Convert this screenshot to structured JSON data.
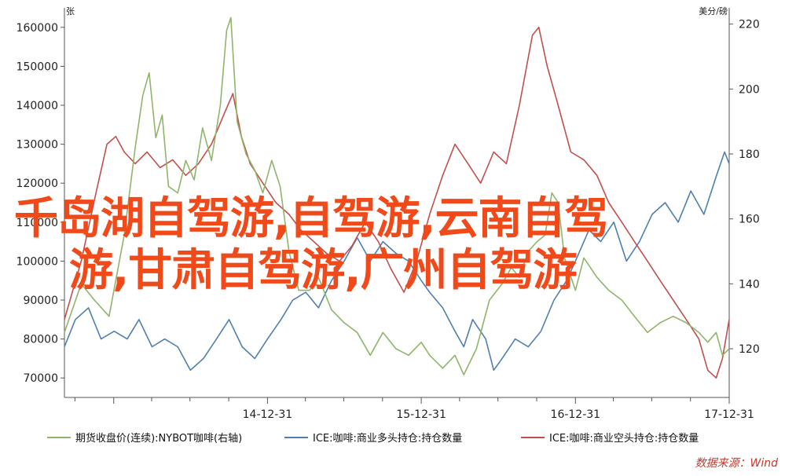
{
  "overlay": {
    "line1": "千岛湖自驾游,自驾游,云南自驾",
    "line2": "游,甘肃自驾游,广州自驾游"
  },
  "source": "数据来源：Wind",
  "chart_data": {
    "type": "line",
    "left_unit": "张",
    "right_unit": "美分/磅",
    "left_axis": {
      "ylim": [
        65000,
        165000
      ],
      "ticks": [
        70000,
        80000,
        90000,
        100000,
        110000,
        120000,
        130000,
        140000,
        150000,
        160000
      ]
    },
    "right_axis": {
      "ylim": [
        105,
        225
      ],
      "ticks": [
        120,
        140,
        160,
        180,
        200,
        220
      ]
    },
    "x_axis": {
      "range": [
        "2013-09-05",
        "2017-12-31"
      ],
      "tick_labels": [
        "14-12-31",
        "15-12-31",
        "16-12-31",
        "17-12-31"
      ]
    },
    "grid": false,
    "legend": "bottom",
    "series": [
      {
        "name": "期货收盘价(连续):NYBOT咖啡(右轴)",
        "axis": "right",
        "color": "#8fb56a",
        "points": [
          [
            "2013-09-05",
            125
          ],
          [
            "2013-10-15",
            140
          ],
          [
            "2013-11-15",
            135
          ],
          [
            "2013-12-20",
            130
          ],
          [
            "2014-01-25",
            155
          ],
          [
            "2014-02-20",
            182
          ],
          [
            "2014-03-10",
            198
          ],
          [
            "2014-03-25",
            205
          ],
          [
            "2014-04-10",
            185
          ],
          [
            "2014-04-25",
            192
          ],
          [
            "2014-05-10",
            170
          ],
          [
            "2014-06-01",
            168
          ],
          [
            "2014-06-20",
            178
          ],
          [
            "2014-07-10",
            172
          ],
          [
            "2014-07-30",
            188
          ],
          [
            "2014-08-20",
            178
          ],
          [
            "2014-09-10",
            195
          ],
          [
            "2014-09-25",
            218
          ],
          [
            "2014-10-05",
            222
          ],
          [
            "2014-10-20",
            190
          ],
          [
            "2014-11-10",
            180
          ],
          [
            "2014-12-01",
            175
          ],
          [
            "2014-12-20",
            168
          ],
          [
            "2015-01-10",
            178
          ],
          [
            "2015-01-30",
            170
          ],
          [
            "2015-02-20",
            150
          ],
          [
            "2015-03-15",
            138
          ],
          [
            "2015-04-10",
            138
          ],
          [
            "2015-05-01",
            142
          ],
          [
            "2015-06-01",
            132
          ],
          [
            "2015-07-01",
            128
          ],
          [
            "2015-08-01",
            125
          ],
          [
            "2015-09-01",
            118
          ],
          [
            "2015-10-01",
            125
          ],
          [
            "2015-11-01",
            120
          ],
          [
            "2015-12-01",
            118
          ],
          [
            "2015-12-31",
            122
          ],
          [
            "2016-01-20",
            118
          ],
          [
            "2016-02-20",
            114
          ],
          [
            "2016-03-20",
            118
          ],
          [
            "2016-04-10",
            112
          ],
          [
            "2016-05-10",
            120
          ],
          [
            "2016-06-10",
            135
          ],
          [
            "2016-07-10",
            140
          ],
          [
            "2016-08-01",
            145
          ],
          [
            "2016-08-20",
            142
          ],
          [
            "2016-09-10",
            150
          ],
          [
            "2016-10-01",
            153
          ],
          [
            "2016-10-20",
            155
          ],
          [
            "2016-11-05",
            168
          ],
          [
            "2016-11-20",
            165
          ],
          [
            "2016-12-05",
            148
          ],
          [
            "2016-12-31",
            138
          ],
          [
            "2017-01-20",
            148
          ],
          [
            "2017-02-20",
            142
          ],
          [
            "2017-03-20",
            138
          ],
          [
            "2017-04-20",
            135
          ],
          [
            "2017-05-20",
            130
          ],
          [
            "2017-06-20",
            125
          ],
          [
            "2017-07-20",
            128
          ],
          [
            "2017-08-20",
            130
          ],
          [
            "2017-09-20",
            128
          ],
          [
            "2017-10-20",
            125
          ],
          [
            "2017-11-10",
            122
          ],
          [
            "2017-11-30",
            125
          ],
          [
            "2017-12-15",
            118
          ],
          [
            "2017-12-31",
            120
          ]
        ]
      },
      {
        "name": "ICE:咖啡:商业多头持仓:持仓数量",
        "axis": "left",
        "color": "#4f7fae",
        "points": [
          [
            "2013-09-05",
            78000
          ],
          [
            "2013-10-01",
            85000
          ],
          [
            "2013-11-01",
            88000
          ],
          [
            "2013-12-01",
            80000
          ],
          [
            "2014-01-01",
            82000
          ],
          [
            "2014-02-01",
            80000
          ],
          [
            "2014-03-01",
            85000
          ],
          [
            "2014-04-01",
            78000
          ],
          [
            "2014-05-01",
            80000
          ],
          [
            "2014-06-01",
            78000
          ],
          [
            "2014-07-01",
            72000
          ],
          [
            "2014-08-01",
            75000
          ],
          [
            "2014-09-01",
            80000
          ],
          [
            "2014-10-01",
            85000
          ],
          [
            "2014-11-01",
            78000
          ],
          [
            "2014-12-01",
            75000
          ],
          [
            "2014-12-31",
            80000
          ],
          [
            "2015-02-01",
            85000
          ],
          [
            "2015-03-01",
            90000
          ],
          [
            "2015-04-01",
            92000
          ],
          [
            "2015-05-01",
            88000
          ],
          [
            "2015-06-01",
            95000
          ],
          [
            "2015-07-01",
            100000
          ],
          [
            "2015-08-01",
            106000
          ],
          [
            "2015-09-01",
            100000
          ],
          [
            "2015-10-01",
            105000
          ],
          [
            "2015-11-01",
            102000
          ],
          [
            "2015-12-01",
            100000
          ],
          [
            "2015-12-31",
            95000
          ],
          [
            "2016-01-20",
            92000
          ],
          [
            "2016-02-20",
            88000
          ],
          [
            "2016-03-20",
            82000
          ],
          [
            "2016-04-10",
            78000
          ],
          [
            "2016-05-01",
            85000
          ],
          [
            "2016-06-01",
            80000
          ],
          [
            "2016-06-20",
            72000
          ],
          [
            "2016-07-10",
            75000
          ],
          [
            "2016-08-10",
            80000
          ],
          [
            "2016-09-10",
            78000
          ],
          [
            "2016-10-10",
            82000
          ],
          [
            "2016-11-10",
            90000
          ],
          [
            "2016-12-10",
            95000
          ],
          [
            "2016-12-31",
            100000
          ],
          [
            "2017-02-01",
            108000
          ],
          [
            "2017-03-01",
            105000
          ],
          [
            "2017-04-01",
            110000
          ],
          [
            "2017-05-01",
            100000
          ],
          [
            "2017-06-01",
            105000
          ],
          [
            "2017-07-01",
            112000
          ],
          [
            "2017-08-01",
            115000
          ],
          [
            "2017-09-01",
            110000
          ],
          [
            "2017-10-01",
            118000
          ],
          [
            "2017-11-01",
            112000
          ],
          [
            "2017-12-01",
            122000
          ],
          [
            "2017-12-20",
            128000
          ],
          [
            "2017-12-31",
            125000
          ]
        ]
      },
      {
        "name": "ICE:咖啡:商业空头持仓:持仓数量",
        "axis": "left",
        "color": "#c0504d",
        "points": [
          [
            "2013-09-05",
            85000
          ],
          [
            "2013-10-15",
            100000
          ],
          [
            "2013-11-20",
            118000
          ],
          [
            "2013-12-15",
            130000
          ],
          [
            "2014-01-05",
            132000
          ],
          [
            "2014-01-25",
            128000
          ],
          [
            "2014-02-20",
            125000
          ],
          [
            "2014-03-20",
            128000
          ],
          [
            "2014-04-20",
            124000
          ],
          [
            "2014-05-20",
            126000
          ],
          [
            "2014-06-20",
            122000
          ],
          [
            "2014-07-20",
            125000
          ],
          [
            "2014-08-20",
            130000
          ],
          [
            "2014-09-20",
            138000
          ],
          [
            "2014-10-10",
            143000
          ],
          [
            "2014-10-30",
            132000
          ],
          [
            "2014-11-20",
            125000
          ],
          [
            "2014-12-20",
            120000
          ],
          [
            "2015-01-20",
            115000
          ],
          [
            "2015-02-20",
            112000
          ],
          [
            "2015-03-20",
            108000
          ],
          [
            "2015-04-20",
            105000
          ],
          [
            "2015-05-20",
            102000
          ],
          [
            "2015-06-20",
            100000
          ],
          [
            "2015-07-20",
            104000
          ],
          [
            "2015-08-20",
            110000
          ],
          [
            "2015-09-20",
            105000
          ],
          [
            "2015-10-20",
            98000
          ],
          [
            "2015-11-20",
            92000
          ],
          [
            "2015-12-20",
            100000
          ],
          [
            "2016-01-20",
            112000
          ],
          [
            "2016-02-20",
            122000
          ],
          [
            "2016-03-20",
            130000
          ],
          [
            "2016-04-20",
            125000
          ],
          [
            "2016-05-20",
            120000
          ],
          [
            "2016-06-20",
            128000
          ],
          [
            "2016-07-20",
            125000
          ],
          [
            "2016-08-20",
            140000
          ],
          [
            "2016-09-20",
            158000
          ],
          [
            "2016-10-05",
            160000
          ],
          [
            "2016-10-25",
            150000
          ],
          [
            "2016-11-20",
            140000
          ],
          [
            "2016-12-20",
            128000
          ],
          [
            "2017-01-20",
            126000
          ],
          [
            "2017-02-20",
            122000
          ],
          [
            "2017-03-20",
            115000
          ],
          [
            "2017-04-20",
            110000
          ],
          [
            "2017-05-20",
            105000
          ],
          [
            "2017-06-20",
            100000
          ],
          [
            "2017-07-20",
            95000
          ],
          [
            "2017-08-20",
            90000
          ],
          [
            "2017-09-20",
            85000
          ],
          [
            "2017-10-20",
            80000
          ],
          [
            "2017-11-10",
            72000
          ],
          [
            "2017-11-30",
            70000
          ],
          [
            "2017-12-15",
            75000
          ],
          [
            "2017-12-31",
            85000
          ]
        ]
      }
    ]
  }
}
